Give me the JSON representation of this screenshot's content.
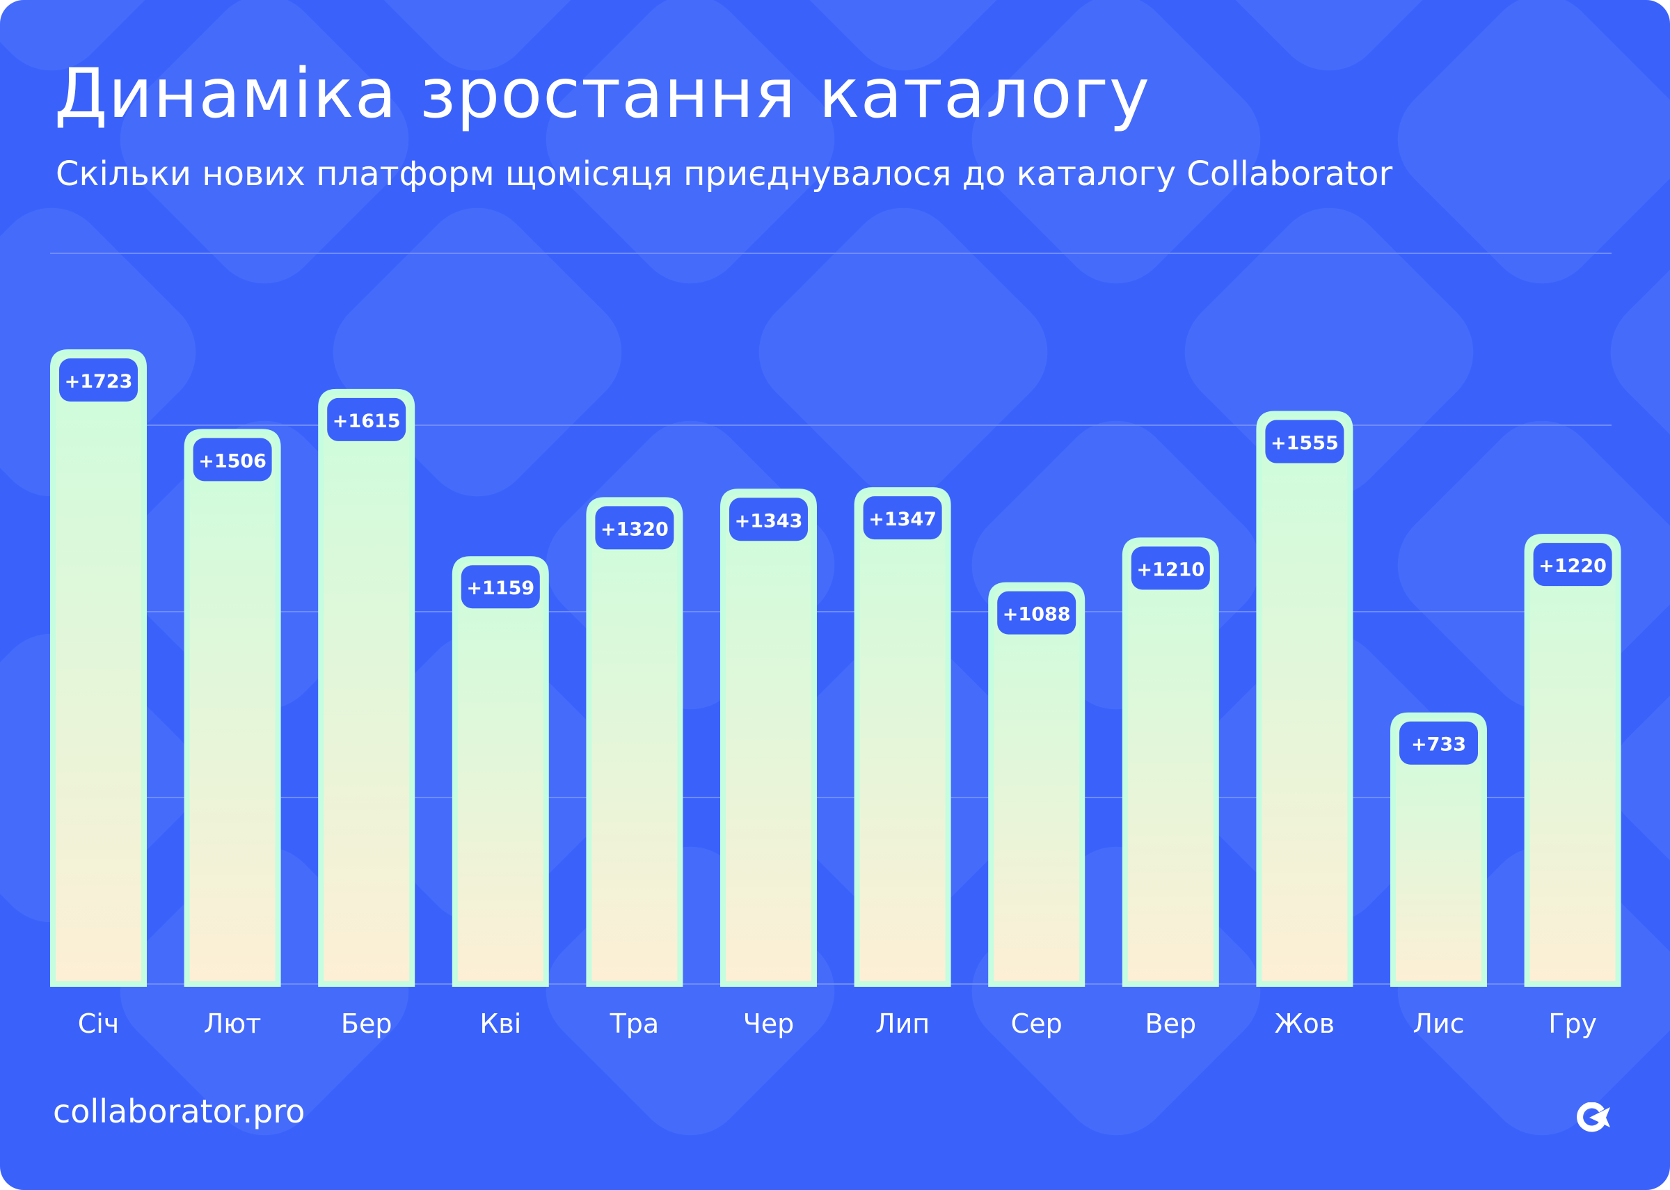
{
  "header": {
    "title": "Динаміка зростання каталогу",
    "subtitle": "Скільки нових платформ щомісяця приєднувалося до каталогу Collaborator"
  },
  "footer": {
    "site": "collaborator.pro",
    "logo_text": "Collaborator"
  },
  "colors": {
    "background": "#3a62fb",
    "bar_top": "#ccfddc",
    "bar_bottom": "#fdefd6",
    "bar_border": "#c4fde0",
    "label_box": "#3a62fb",
    "gridline": "#6f8cfc"
  },
  "chart_data": {
    "type": "bar",
    "title": "Динаміка зростання каталогу",
    "subtitle": "Скільки нових платформ щомісяця приєднувалося до каталогу Collaborator",
    "categories": [
      "Січ",
      "Лют",
      "Бер",
      "Кві",
      "Тра",
      "Чер",
      "Лип",
      "Сер",
      "Вер",
      "Жов",
      "Лис",
      "Гру"
    ],
    "values": [
      1723,
      1506,
      1615,
      1159,
      1320,
      1343,
      1347,
      1088,
      1210,
      1555,
      733,
      1220
    ],
    "data_labels": [
      "+1723",
      "+1506",
      "+1615",
      "+1159",
      "+1320",
      "+1343",
      "+1347",
      "+1088",
      "+1210",
      "+1555",
      "+733",
      "+1220"
    ],
    "xlabel": "",
    "ylabel": "",
    "ylim": [
      0,
      2000
    ],
    "grid": true,
    "legend": "none"
  }
}
